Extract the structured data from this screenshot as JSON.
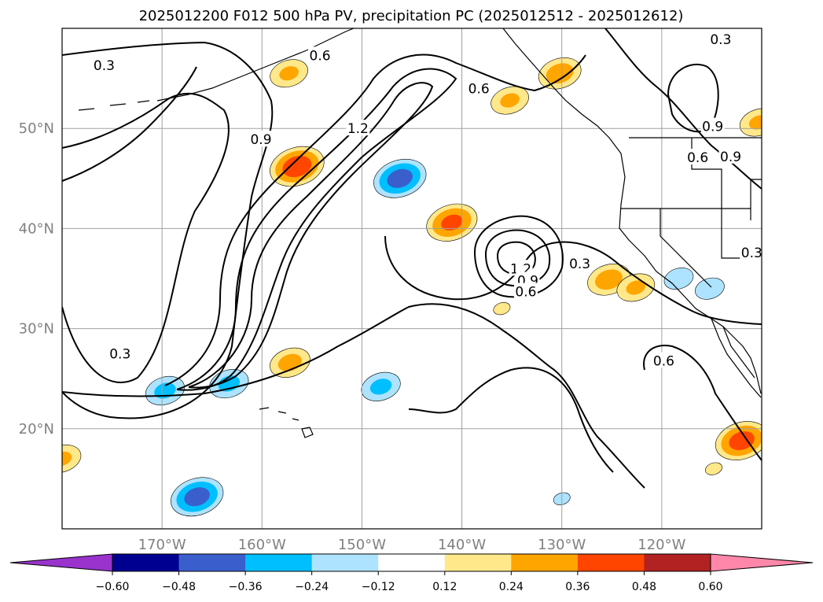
{
  "title": "2025012200 F012 500 hPa PV, precipitation PC (2025012512 - 2025012612)",
  "map": {
    "lon_range": [
      -180,
      -110
    ],
    "lat_range": [
      10,
      60
    ],
    "lon_ticks": [
      {
        "value": -170,
        "label": "170°W"
      },
      {
        "value": -160,
        "label": "160°W"
      },
      {
        "value": -150,
        "label": "150°W"
      },
      {
        "value": -140,
        "label": "140°W"
      },
      {
        "value": -130,
        "label": "130°W"
      },
      {
        "value": -120,
        "label": "120°W"
      }
    ],
    "lat_ticks": [
      {
        "value": 50,
        "label": "50°N"
      },
      {
        "value": 40,
        "label": "40°N"
      },
      {
        "value": 30,
        "label": "30°N"
      },
      {
        "value": 20,
        "label": "20°N"
      }
    ],
    "grid": true
  },
  "contour_labels": [
    {
      "text": "0.3",
      "lon": -175.8,
      "lat": 56.3
    },
    {
      "text": "0.6",
      "lon": -154.2,
      "lat": 57.3
    },
    {
      "text": "0.6",
      "lon": -138.3,
      "lat": 54.0
    },
    {
      "text": "0.3",
      "lon": -114.1,
      "lat": 58.9
    },
    {
      "text": "0.9",
      "lon": -160.1,
      "lat": 48.9
    },
    {
      "text": "1.2",
      "lon": -150.4,
      "lat": 50.0
    },
    {
      "text": "0.9",
      "lon": -114.9,
      "lat": 50.2
    },
    {
      "text": "0.6",
      "lon": -116.4,
      "lat": 47.1
    },
    {
      "text": "0.9",
      "lon": -113.1,
      "lat": 47.2
    },
    {
      "text": "0.3",
      "lon": -111.0,
      "lat": 37.6
    },
    {
      "text": "0.3",
      "lon": -128.2,
      "lat": 36.5
    },
    {
      "text": "1.2",
      "lon": -134.1,
      "lat": 36.0
    },
    {
      "text": "0.9",
      "lon": -133.4,
      "lat": 34.8
    },
    {
      "text": "0.6",
      "lon": -133.6,
      "lat": 33.7
    },
    {
      "text": "0.3",
      "lon": -174.2,
      "lat": 27.5
    },
    {
      "text": "0.6",
      "lon": -119.8,
      "lat": 26.8
    }
  ],
  "legend": {
    "type": "colorbar",
    "extend": "both",
    "levels": [
      -0.6,
      -0.48,
      -0.36,
      -0.24,
      -0.12,
      0.12,
      0.24,
      0.36,
      0.48,
      0.6
    ],
    "tick_labels": [
      "−0.60",
      "−0.48",
      "−0.36",
      "−0.24",
      "−0.12",
      "0.12",
      "0.24",
      "0.36",
      "0.48",
      "0.60"
    ],
    "colors": [
      "#9933cc",
      "#000090",
      "#3a5fcd",
      "#00bfff",
      "#aee3ff",
      "#ffffff",
      "#ffe88a",
      "#ffa500",
      "#ff4500",
      "#b22222",
      "#ff88aa"
    ]
  },
  "precip_blobs": [
    {
      "lon": -156.5,
      "lat": 46.2,
      "value": 0.42
    },
    {
      "lon": -146.2,
      "lat": 45.0,
      "value": -0.4
    },
    {
      "lon": -141.0,
      "lat": 40.6,
      "value": 0.38
    },
    {
      "lon": -166.5,
      "lat": 13.2,
      "value": -0.4
    },
    {
      "lon": -169.7,
      "lat": 23.8,
      "value": -0.27
    },
    {
      "lon": -163.3,
      "lat": 24.5,
      "value": -0.27
    },
    {
      "lon": -148.1,
      "lat": 24.2,
      "value": -0.27
    },
    {
      "lon": -157.2,
      "lat": 26.6,
      "value": 0.28
    },
    {
      "lon": -125.3,
      "lat": 34.9,
      "value": 0.3
    },
    {
      "lon": -122.6,
      "lat": 34.1,
      "value": 0.26
    },
    {
      "lon": -112.0,
      "lat": 18.8,
      "value": 0.4
    },
    {
      "lon": -180.0,
      "lat": 17.0,
      "value": 0.26
    },
    {
      "lon": -130.2,
      "lat": 55.5,
      "value": 0.3
    },
    {
      "lon": -135.2,
      "lat": 52.8,
      "value": 0.26
    },
    {
      "lon": -157.3,
      "lat": 55.5,
      "value": 0.26
    },
    {
      "lon": -110.3,
      "lat": 50.6,
      "value": 0.26
    },
    {
      "lon": -136.0,
      "lat": 32.0,
      "value": 0.14
    },
    {
      "lon": -114.8,
      "lat": 16.0,
      "value": 0.14
    },
    {
      "lon": -118.3,
      "lat": 35.0,
      "value": -0.2
    },
    {
      "lon": -115.2,
      "lat": 34.0,
      "value": -0.2
    },
    {
      "lon": -130.0,
      "lat": 13.0,
      "value": -0.14
    }
  ]
}
